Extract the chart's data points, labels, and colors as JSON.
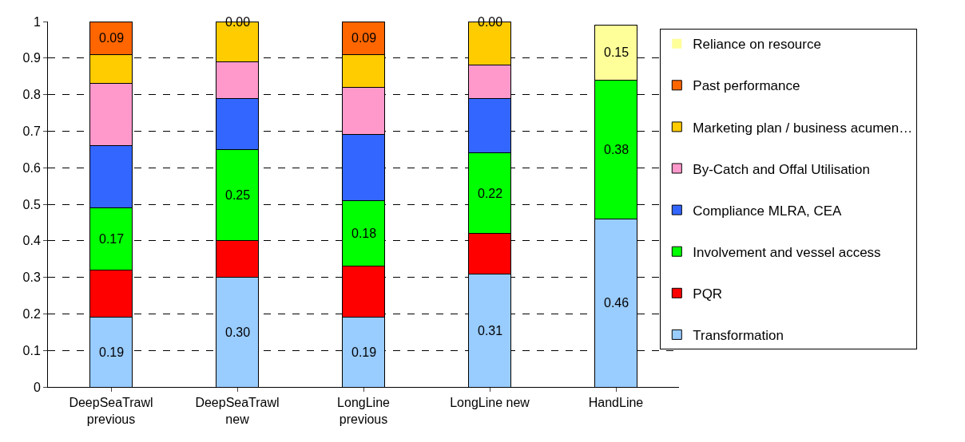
{
  "chart_data": {
    "type": "bar",
    "stacked": true,
    "categories": [
      "DeepSeaTrawl\nprevious",
      "DeepSeaTrawl\nnew",
      "LongLine\nprevious",
      "LongLine new",
      "HandLine"
    ],
    "series": [
      {
        "name": "Transformation",
        "color": "#99ccff",
        "values": [
          0.19,
          0.3,
          0.19,
          0.31,
          0.46
        ],
        "value_labels": [
          "0.19",
          "0.30",
          "0.19",
          "0.31",
          "0.46"
        ]
      },
      {
        "name": "PQR",
        "color": "#ff0000",
        "values": [
          0.13,
          0.1,
          0.14,
          0.11,
          null
        ],
        "value_labels": [
          null,
          null,
          null,
          null,
          null
        ]
      },
      {
        "name": "Involvement and vessel access",
        "color": "#00ff00",
        "values": [
          0.17,
          0.25,
          0.18,
          0.22,
          0.38
        ],
        "value_labels": [
          "0.17",
          "0.25",
          "0.18",
          "0.22",
          "0.38"
        ]
      },
      {
        "name": "Compliance MLRA, CEA",
        "color": "#3366ff",
        "values": [
          0.17,
          0.14,
          0.18,
          0.15,
          null
        ],
        "value_labels": [
          null,
          null,
          null,
          null,
          null
        ]
      },
      {
        "name": "By-Catch and Offal Utilisation",
        "color": "#ff99cc",
        "values": [
          0.17,
          0.1,
          0.13,
          0.09,
          null
        ],
        "value_labels": [
          null,
          null,
          null,
          null,
          null
        ]
      },
      {
        "name": "Marketing plan / business acumen…",
        "color": "#ffcc00",
        "values": [
          0.08,
          0.11,
          0.09,
          0.12,
          null
        ],
        "value_labels": [
          null,
          null,
          null,
          null,
          null
        ]
      },
      {
        "name": "Past performance",
        "color": "#ff6600",
        "values": [
          0.09,
          0.0,
          0.09,
          0.0,
          null
        ],
        "value_labels": [
          "0.09",
          "0.00",
          "0.09",
          "0.00",
          null
        ]
      },
      {
        "name": "Reliance on resource",
        "color": "#ffff99",
        "values": [
          null,
          null,
          null,
          null,
          0.15
        ],
        "value_labels": [
          null,
          null,
          null,
          null,
          "0.15"
        ]
      }
    ],
    "ylim": [
      0,
      1
    ],
    "yticks": [
      0,
      0.1,
      0.2,
      0.3,
      0.4,
      0.5,
      0.6,
      0.7,
      0.8,
      0.9,
      1
    ],
    "grid": "y",
    "legend": "right"
  }
}
